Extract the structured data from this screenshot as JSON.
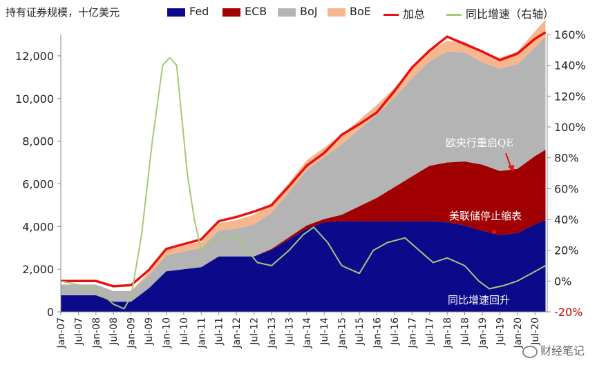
{
  "chart_data": {
    "type": "area",
    "title": "持有证券规模，十亿美元",
    "legend": [
      {
        "name": "Fed",
        "color": "#0a0a8a",
        "kind": "area"
      },
      {
        "name": "ECB",
        "color": "#a00000",
        "kind": "area"
      },
      {
        "name": "BoJ",
        "color": "#b4b4b4",
        "kind": "area"
      },
      {
        "name": "BoE",
        "color": "#f7b78e",
        "kind": "area"
      },
      {
        "name": "加总",
        "color": "#e81010",
        "kind": "line"
      },
      {
        "name": "同比增速（右轴）",
        "color": "#a6c878",
        "kind": "line"
      }
    ],
    "y_left": {
      "min": 0,
      "max": 13000,
      "ticks": [
        "0",
        "2,000",
        "4,000",
        "6,000",
        "8,000",
        "10,000",
        "12,000"
      ],
      "tick_values": [
        0,
        2000,
        4000,
        6000,
        8000,
        10000,
        12000
      ]
    },
    "y_right": {
      "min": -20,
      "max": 160,
      "ticks": [
        "-20%",
        "0%",
        "20%",
        "40%",
        "60%",
        "80%",
        "100%",
        "120%",
        "140%",
        "160%"
      ],
      "tick_values": [
        -20,
        0,
        20,
        40,
        60,
        80,
        100,
        120,
        140,
        160
      ]
    },
    "x_ticks": [
      "Jan-07",
      "Jul-07",
      "Jan-08",
      "Jul-08",
      "Jan-09",
      "Jul-09",
      "Jan-10",
      "Jul-10",
      "Jan-11",
      "Jul-11",
      "Jan-12",
      "Jul-12",
      "Jan-13",
      "Jul-13",
      "Jan-14",
      "Jul-14",
      "Jan-15",
      "Jul-15",
      "Jan-16",
      "Jul-16",
      "Jan-17",
      "Jul-17",
      "Jan-18",
      "Jul-18",
      "Jan-19",
      "Jul-19",
      "Jan-20",
      "Jul-20"
    ],
    "x": [
      2007.0,
      2008.0,
      2008.5,
      2009.0,
      2009.5,
      2010.0,
      2011.0,
      2011.5,
      2012.0,
      2012.5,
      2013.0,
      2013.5,
      2014.0,
      2014.5,
      2015.0,
      2015.5,
      2016.0,
      2016.5,
      2017.0,
      2017.5,
      2018.0,
      2018.5,
      2019.0,
      2019.5,
      2020.0,
      2020.5,
      2020.8
    ],
    "series": [
      {
        "name": "Fed",
        "values": [
          780,
          780,
          480,
          480,
          1100,
          1900,
          2100,
          2600,
          2600,
          2600,
          2900,
          3400,
          3900,
          4200,
          4250,
          4250,
          4250,
          4250,
          4250,
          4250,
          4200,
          4050,
          3800,
          3600,
          3700,
          4100,
          4300
        ]
      },
      {
        "name": "ECB",
        "values": [
          0,
          0,
          0,
          0,
          0,
          0,
          0,
          0,
          0,
          0,
          50,
          100,
          150,
          150,
          300,
          700,
          1100,
          1600,
          2100,
          2600,
          2800,
          3000,
          3100,
          3000,
          3000,
          3200,
          3300
        ]
      },
      {
        "name": "BoJ",
        "values": [
          500,
          500,
          500,
          500,
          600,
          750,
          900,
          1200,
          1300,
          1500,
          1700,
          2100,
          2600,
          2900,
          3300,
          3600,
          3900,
          4200,
          4600,
          4900,
          5200,
          5100,
          4800,
          4800,
          4900,
          5100,
          5300
        ]
      },
      {
        "name": "BoE",
        "values": [
          0,
          0,
          0,
          0,
          150,
          250,
          300,
          350,
          400,
          450,
          450,
          450,
          450,
          450,
          450,
          450,
          450,
          450,
          500,
          500,
          500,
          500,
          500,
          500,
          600,
          750,
          800
        ]
      },
      {
        "name": "加总",
        "values": [
          1450,
          1450,
          1200,
          1250,
          1950,
          2950,
          3400,
          4250,
          4450,
          4700,
          5000,
          5900,
          6850,
          7450,
          8300,
          8800,
          9350,
          10350,
          11450,
          12250,
          12900,
          12550,
          12200,
          11800,
          12100,
          12800,
          13100
        ]
      },
      {
        "name": "同比增速（右轴）",
        "x": [
          2007.0,
          2008.0,
          2008.5,
          2008.8,
          2009.0,
          2009.3,
          2009.6,
          2009.9,
          2010.1,
          2010.3,
          2010.6,
          2010.8,
          2011.0,
          2011.3,
          2011.6,
          2012.0,
          2012.3,
          2012.6,
          2013.0,
          2013.5,
          2013.9,
          2014.2,
          2014.6,
          2015.0,
          2015.5,
          2015.9,
          2016.3,
          2016.8,
          2017.2,
          2017.6,
          2018.0,
          2018.5,
          2018.9,
          2019.2,
          2019.6,
          2020.0,
          2020.4,
          2020.8
        ],
        "values": [
          0,
          -5,
          -15,
          -18,
          -10,
          30,
          90,
          140,
          145,
          140,
          70,
          40,
          20,
          25,
          28,
          30,
          20,
          12,
          10,
          20,
          30,
          35,
          25,
          10,
          5,
          20,
          25,
          28,
          20,
          12,
          15,
          10,
          0,
          -5,
          -3,
          0,
          5,
          10
        ]
      }
    ],
    "annotations": [
      "欧央行重启QE",
      "美联储停止缩表",
      "同比增速回升"
    ]
  },
  "watermark": "财经笔记"
}
